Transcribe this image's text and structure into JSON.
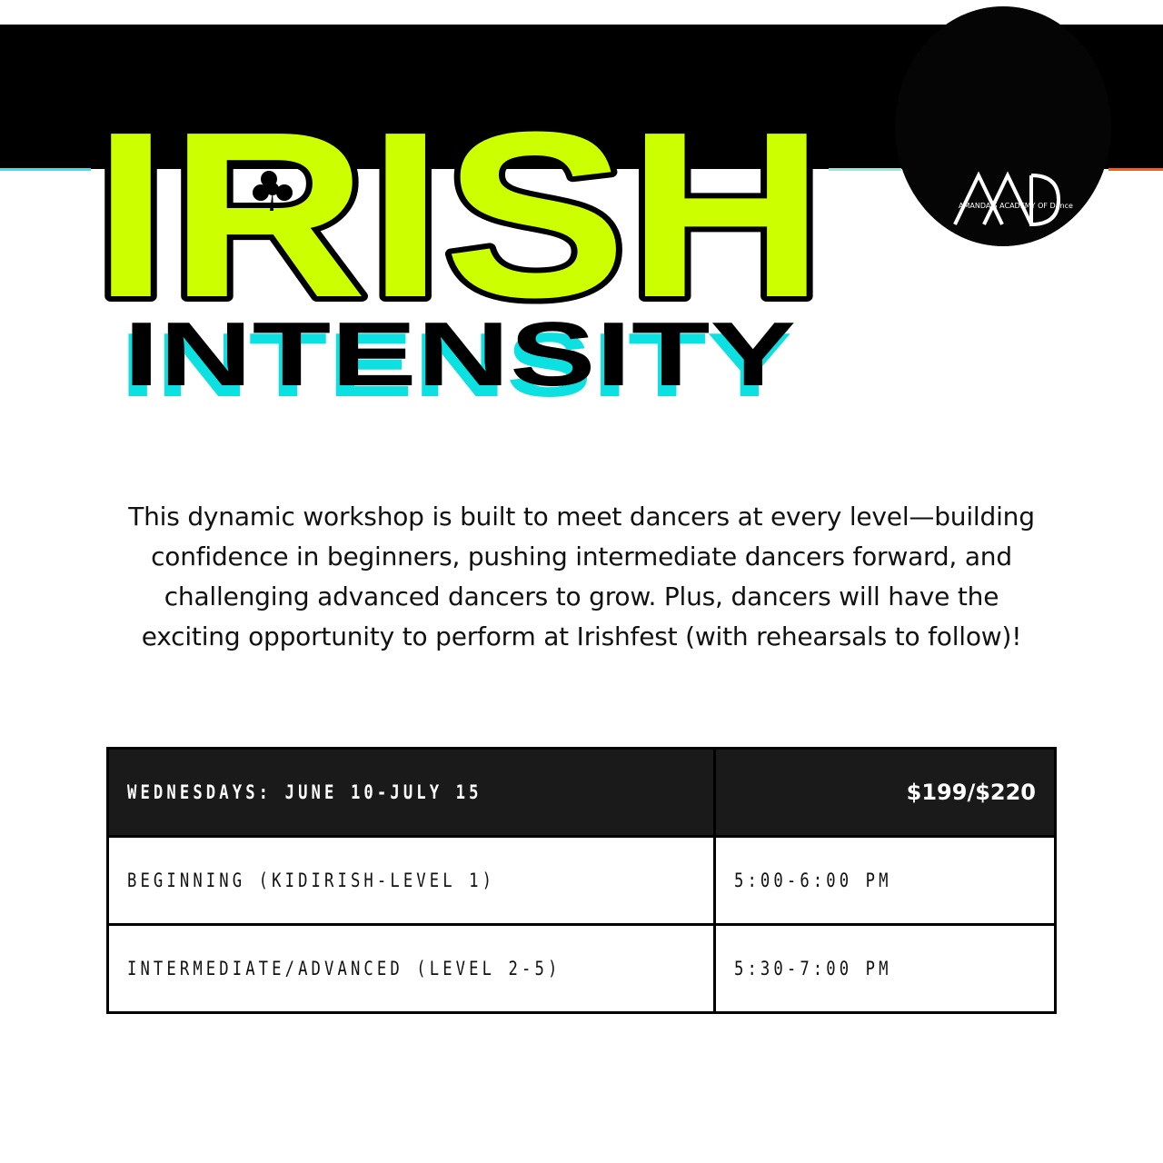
{
  "colors": {
    "lime": "#CCFF00",
    "cyan": "#0FE0E0",
    "black": "#000000",
    "header_row": "#1A1A1A",
    "accent_orange": "#F0611E"
  },
  "logo": {
    "letters": "AAD",
    "tagline": "AMANDA'S ACADEMY OF Dance",
    "icon": "shamrock-icon"
  },
  "title": {
    "line1": "IRISH",
    "line2": "INTENSITY"
  },
  "description": [
    "This dynamic workshop is built to meet dancers at every level—building",
    "confidence in beginners, pushing intermediate dancers forward, and",
    "challenging advanced dancers to grow. Plus, dancers will have the",
    "exciting opportunity to perform at Irishfest (with rehearsals to follow)!"
  ],
  "schedule": {
    "header": {
      "dates": "WEDNESDAYS: JUNE 10-JULY 15",
      "price": "$199/$220"
    },
    "rows": [
      {
        "level": " BEGINNING (KIDIRISH-LEVEL 1)",
        "time": "5:00-6:00 PM"
      },
      {
        "level": "INTERMEDIATE/ADVANCED (LEVEL 2-5)",
        "time": "5:30-7:00 PM"
      }
    ]
  }
}
